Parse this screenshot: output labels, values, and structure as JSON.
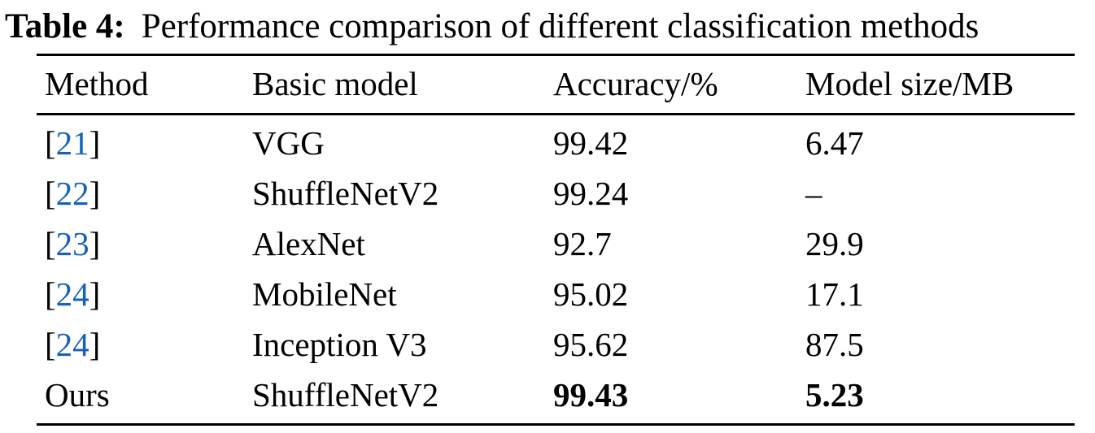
{
  "caption": {
    "label": "Table 4:",
    "text": "Performance comparison of different classification methods"
  },
  "colors": {
    "citation": "#1560bd",
    "text": "#000000",
    "rule": "#000000"
  },
  "table": {
    "bracket_open": "[",
    "bracket_close": "]",
    "columns": [
      {
        "key": "method",
        "label": "Method"
      },
      {
        "key": "basic_model",
        "label": "Basic model"
      },
      {
        "key": "accuracy",
        "label": "Accuracy/%"
      },
      {
        "key": "model_size",
        "label": "Model size/MB"
      }
    ],
    "rows": [
      {
        "citation": "21",
        "basic_model": "VGG",
        "accuracy": "99.42",
        "model_size": "6.47",
        "bold_values": false
      },
      {
        "citation": "22",
        "basic_model": "ShuffleNetV2",
        "accuracy": "99.24",
        "model_size": "–",
        "bold_values": false
      },
      {
        "citation": "23",
        "basic_model": "AlexNet",
        "accuracy": "92.7",
        "model_size": "29.9",
        "bold_values": false
      },
      {
        "citation": "24",
        "basic_model": "MobileNet",
        "accuracy": "95.02",
        "model_size": "17.1",
        "bold_values": false
      },
      {
        "citation": "24",
        "basic_model": "Inception V3",
        "accuracy": "95.62",
        "model_size": "87.5",
        "bold_values": false
      },
      {
        "method": "Ours",
        "basic_model": "ShuffleNetV2",
        "accuracy": "99.43",
        "model_size": "5.23",
        "bold_values": true
      }
    ]
  }
}
